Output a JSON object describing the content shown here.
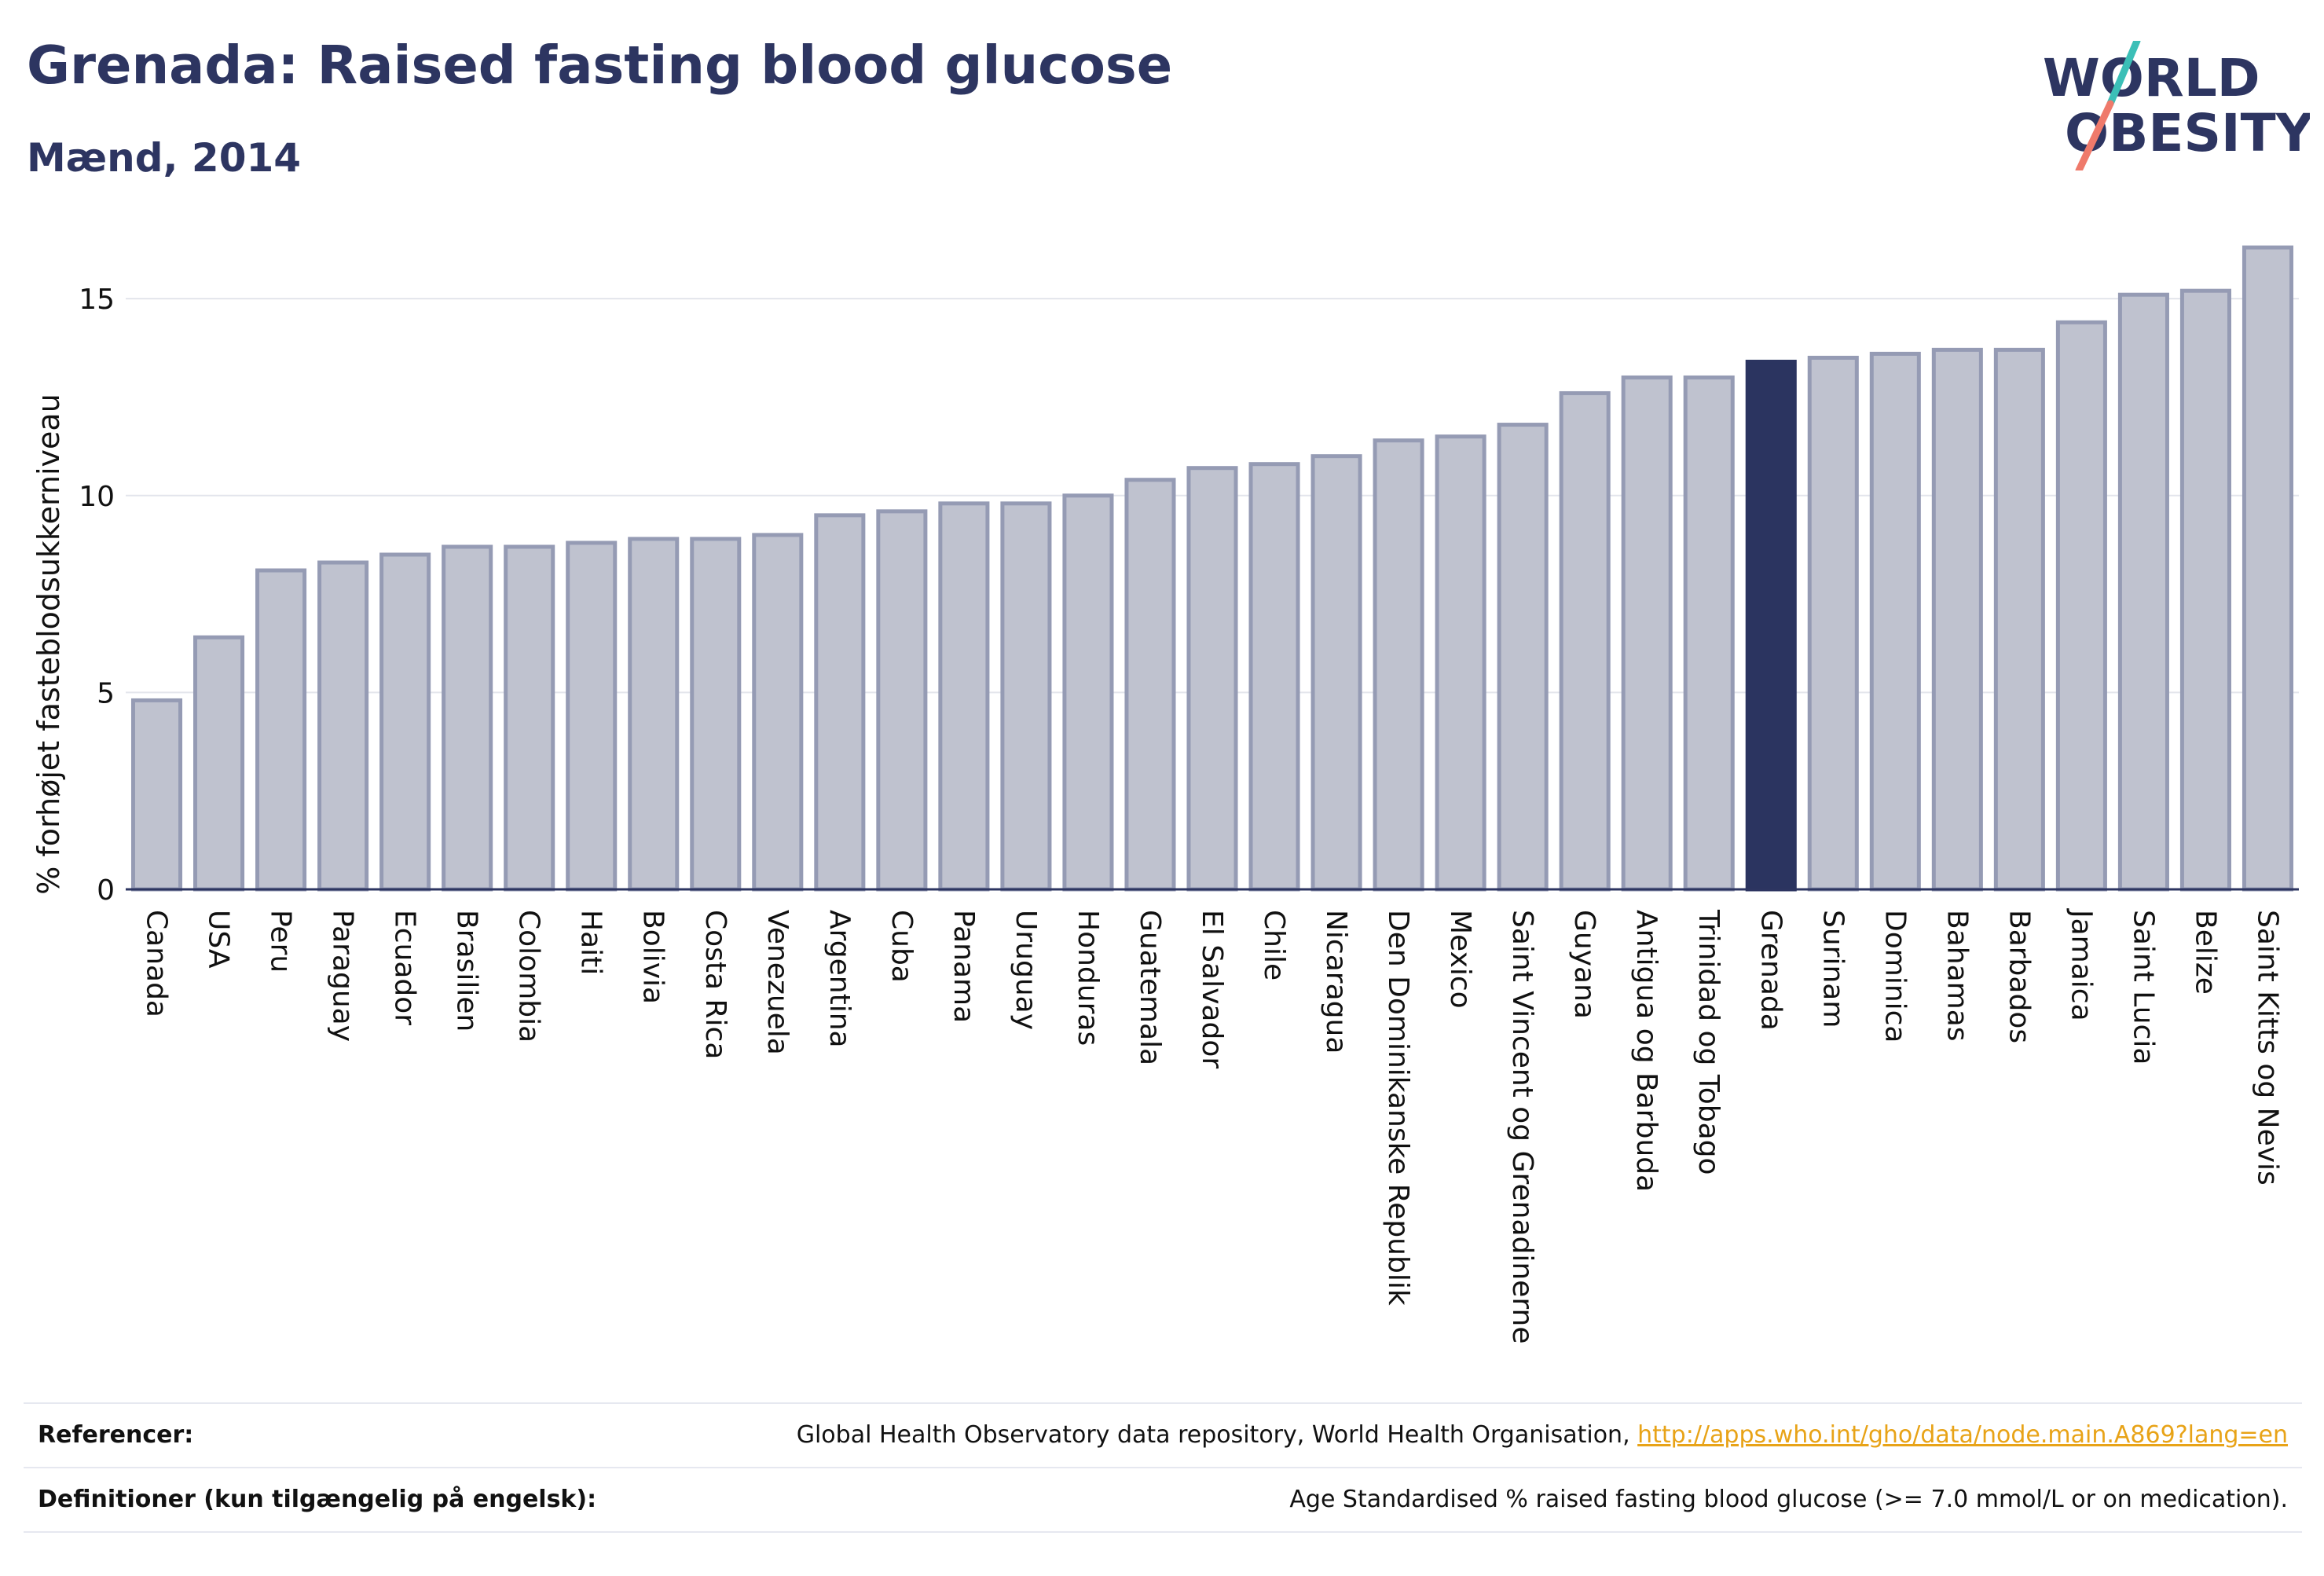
{
  "header": {
    "title": "Grenada: Raised fasting blood glucose",
    "subtitle": "Mænd, 2014",
    "logo_line1": "WORLD",
    "logo_line2": "OBESITY"
  },
  "chart_data": {
    "type": "bar",
    "ylabel": "% forhøjet fasteblodsukkerniveau",
    "ylim": [
      0,
      16.5
    ],
    "yticks": [
      0,
      5,
      10,
      15
    ],
    "grid": true,
    "highlight": "Grenada",
    "colors": {
      "bar_fill": "#bfc2cf",
      "bar_stroke": "#959bb4",
      "highlight_fill": "#2b3460",
      "grid": "#e3e5ec",
      "axis": "#2d3561"
    },
    "categories": [
      "Canada",
      "USA",
      "Peru",
      "Paraguay",
      "Ecuador",
      "Brasilien",
      "Colombia",
      "Haiti",
      "Bolivia",
      "Costa Rica",
      "Venezuela",
      "Argentina",
      "Cuba",
      "Panama",
      "Uruguay",
      "Honduras",
      "Guatemala",
      "El Salvador",
      "Chile",
      "Nicaragua",
      "Den Dominikanske Republik",
      "Mexico",
      "Saint Vincent og Grenadinerne",
      "Guyana",
      "Antigua og Barbuda",
      "Trinidad og Tobago",
      "Grenada",
      "Surinam",
      "Dominica",
      "Bahamas",
      "Barbados",
      "Jamaica",
      "Saint Lucia",
      "Belize",
      "Saint Kitts og Nevis"
    ],
    "values": [
      4.8,
      6.4,
      8.1,
      8.3,
      8.5,
      8.7,
      8.7,
      8.8,
      8.9,
      8.9,
      9.0,
      9.5,
      9.6,
      9.8,
      9.8,
      10.0,
      10.4,
      10.7,
      10.8,
      11.0,
      11.4,
      11.5,
      11.8,
      12.6,
      13.0,
      13.0,
      13.4,
      13.5,
      13.6,
      13.7,
      13.7,
      14.4,
      15.1,
      15.2,
      16.3
    ]
  },
  "references": {
    "ref_label": "Referencer:",
    "ref_text": "Global Health Observatory data repository, World Health Organisation, ",
    "ref_link": "http://apps.who.int/gho/data/node.main.A869?lang=en",
    "def_label": "Definitioner (kun tilgængelig på engelsk):",
    "def_text": "Age Standardised % raised fasting blood glucose (>= 7.0 mmol/L or on medication)."
  }
}
